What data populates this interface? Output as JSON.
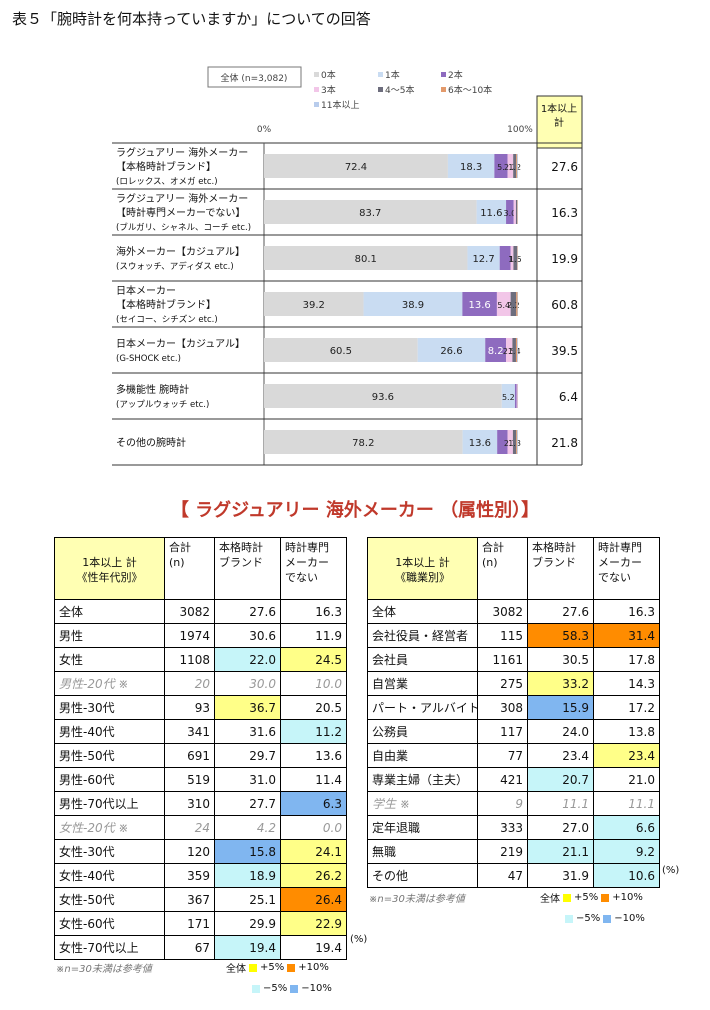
{
  "page_title": "表５「腕時計を何本持っていますか」についての回答",
  "chart_data": {
    "type": "bar",
    "stacked": true,
    "orientation": "horizontal",
    "sample_label": "全体 (n=3,082)",
    "axis_left": "0%",
    "axis_right": "100%",
    "xlim": [
      0,
      100
    ],
    "total_header": "1本以上\n計",
    "series": [
      {
        "name": "0本",
        "color": "#d9d9d9"
      },
      {
        "name": "1本",
        "color": "#c9dcf2"
      },
      {
        "name": "2本",
        "color": "#8e6bbf"
      },
      {
        "name": "3本",
        "color": "#f2c6e8"
      },
      {
        "name": "4～5本",
        "color": "#6d6d7d"
      },
      {
        "name": "6本～10本",
        "color": "#e39a6b"
      },
      {
        "name": "11本以上",
        "color": "#b8ccec"
      }
    ],
    "categories": [
      {
        "lines": [
          "ラグジュアリー 海外メーカー",
          "【本格時計ブランド】",
          "(ロレックス、オメガ etc.)"
        ],
        "values": [
          72.4,
          18.3,
          5.2,
          2.2,
          1.2,
          0.4,
          0.3
        ],
        "labels": [
          "72.4",
          "18.3",
          "5.",
          "2.2",
          "1.2",
          "",
          ""
        ],
        "total": "27.6"
      },
      {
        "lines": [
          "ラグジュアリー 海外メーカー",
          "【時計専門メーカーでない】",
          "(ブルガリ、シャネル、コーチ etc.)"
        ],
        "values": [
          83.7,
          11.6,
          3.0,
          0.9,
          0.5,
          0.2,
          0.1
        ],
        "labels": [
          "83.7",
          "11.6",
          "3.0",
          "",
          "",
          "",
          ""
        ],
        "total": "16.3"
      },
      {
        "lines": [
          "海外メーカー【カジュアル】",
          "(スウォッチ、アディダス etc.)"
        ],
        "values": [
          80.1,
          12.7,
          4.3,
          1.1,
          1.5,
          0.2,
          0.1
        ],
        "labels": [
          "80.1",
          "12.7",
          "",
          "1.",
          "1.5",
          "",
          ""
        ],
        "total": "19.9"
      },
      {
        "lines": [
          "日本メーカー",
          "【本格時計ブランド】",
          "(セイコー、シチズン etc.)"
        ],
        "values": [
          39.2,
          38.9,
          13.6,
          5.4,
          2.2,
          0.5,
          0.2
        ],
        "labels": [
          "39.2",
          "38.9",
          "13.6",
          "5.4",
          "2.2",
          "",
          ""
        ],
        "total": "60.8"
      },
      {
        "lines": [
          "日本メーカー【カジュアル】",
          "(G-SHOCK etc.)"
        ],
        "values": [
          60.5,
          26.6,
          8.2,
          2.5,
          1.4,
          0.5,
          0.3
        ],
        "labels": [
          "60.5",
          "26.6",
          "8.2",
          "2.5",
          "1.4",
          "",
          ""
        ],
        "total": "39.5"
      },
      {
        "lines": [
          "多機能性 腕時計",
          "(アップルウォッチ etc.)"
        ],
        "values": [
          93.6,
          5.2,
          0.7,
          0.3,
          0.1,
          0.05,
          0.05
        ],
        "labels": [
          "93.6",
          "5.2",
          "",
          "",
          "",
          "",
          ""
        ],
        "total": "6.4"
      },
      {
        "lines": [
          "その他の腕時計"
        ],
        "values": [
          78.2,
          13.6,
          4.1,
          2.1,
          1.3,
          0.4,
          0.3
        ],
        "labels": [
          "78.2",
          "13.6",
          "",
          "2.1",
          "1.3",
          "",
          ""
        ],
        "total": "21.8"
      }
    ]
  },
  "section_heading": "【 ラグジュアリー 海外メーカー （属性別）】",
  "table_left": {
    "header_main": "1本以上 計\n《性年代別》",
    "header_total": "合計\n(n)",
    "header_a": "本格時計\nブランド",
    "header_b": "時計専門\nメーカー\nでない",
    "rows": [
      {
        "label": "全体",
        "n": "3082",
        "a": "27.6",
        "b": "16.3",
        "style": "",
        "ca": "",
        "cb": ""
      },
      {
        "label": "男性",
        "n": "1974",
        "a": "30.6",
        "b": "11.9",
        "style": "thick",
        "ca": "",
        "cb": ""
      },
      {
        "label": "女性",
        "n": "1108",
        "a": "22.0",
        "b": "24.5",
        "style": "",
        "ca": "c-lightblue",
        "cb": "c-yellow"
      },
      {
        "label": "男性-20代 ※",
        "n": "20",
        "a": "30.0",
        "b": "10.0",
        "style": "thick ref",
        "ca": "",
        "cb": ""
      },
      {
        "label": "男性-30代",
        "n": "93",
        "a": "36.7",
        "b": "20.5",
        "style": "",
        "ca": "c-yellow",
        "cb": ""
      },
      {
        "label": "男性-40代",
        "n": "341",
        "a": "31.6",
        "b": "11.2",
        "style": "",
        "ca": "",
        "cb": "c-lightblue"
      },
      {
        "label": "男性-50代",
        "n": "691",
        "a": "29.7",
        "b": "13.6",
        "style": "",
        "ca": "",
        "cb": ""
      },
      {
        "label": "男性-60代",
        "n": "519",
        "a": "31.0",
        "b": "11.4",
        "style": "",
        "ca": "",
        "cb": ""
      },
      {
        "label": "男性-70代以上",
        "n": "310",
        "a": "27.7",
        "b": "6.3",
        "style": "",
        "ca": "",
        "cb": "c-blue"
      },
      {
        "label": "女性-20代 ※",
        "n": "24",
        "a": "4.2",
        "b": "0.0",
        "style": "dashed ref",
        "ca": "",
        "cb": ""
      },
      {
        "label": "女性-30代",
        "n": "120",
        "a": "15.8",
        "b": "24.1",
        "style": "",
        "ca": "c-blue",
        "cb": "c-yellow"
      },
      {
        "label": "女性-40代",
        "n": "359",
        "a": "18.9",
        "b": "26.2",
        "style": "",
        "ca": "c-lightblue",
        "cb": "c-yellow"
      },
      {
        "label": "女性-50代",
        "n": "367",
        "a": "25.1",
        "b": "26.4",
        "style": "",
        "ca": "",
        "cb": "c-orange"
      },
      {
        "label": "女性-60代",
        "n": "171",
        "a": "29.9",
        "b": "22.9",
        "style": "",
        "ca": "",
        "cb": "c-yellow"
      },
      {
        "label": "女性-70代以上",
        "n": "67",
        "a": "19.4",
        "b": "19.4",
        "style": "",
        "ca": "c-lightblue",
        "cb": ""
      }
    ],
    "unit": "(%)",
    "note": "※n=30未満は参考値"
  },
  "table_right": {
    "header_main": "1本以上 計\n《職業別》",
    "header_total": "合計\n(n)",
    "header_a": "本格時計\nブランド",
    "header_b": "時計専門\nメーカー\nでない",
    "rows": [
      {
        "label": "全体",
        "n": "3082",
        "a": "27.6",
        "b": "16.3",
        "style": "",
        "ca": "",
        "cb": ""
      },
      {
        "label": "会社役員・経営者",
        "n": "115",
        "a": "58.3",
        "b": "31.4",
        "style": "thick",
        "ca": "c-orange",
        "cb": "c-orange"
      },
      {
        "label": "会社員",
        "n": "1161",
        "a": "30.5",
        "b": "17.8",
        "style": "",
        "ca": "",
        "cb": ""
      },
      {
        "label": "自営業",
        "n": "275",
        "a": "33.2",
        "b": "14.3",
        "style": "",
        "ca": "c-yellow",
        "cb": ""
      },
      {
        "label": "パート・アルバイト",
        "n": "308",
        "a": "15.9",
        "b": "17.2",
        "style": "",
        "ca": "c-blue",
        "cb": ""
      },
      {
        "label": "公務員",
        "n": "117",
        "a": "24.0",
        "b": "13.8",
        "style": "",
        "ca": "",
        "cb": ""
      },
      {
        "label": "自由業",
        "n": "77",
        "a": "23.4",
        "b": "23.4",
        "style": "",
        "ca": "",
        "cb": "c-yellow"
      },
      {
        "label": "専業主婦（主夫）",
        "n": "421",
        "a": "20.7",
        "b": "21.0",
        "style": "",
        "ca": "c-lightblue",
        "cb": ""
      },
      {
        "label": "学生 ※",
        "n": "9",
        "a": "11.1",
        "b": "11.1",
        "style": "ref",
        "ca": "",
        "cb": ""
      },
      {
        "label": "定年退職",
        "n": "333",
        "a": "27.0",
        "b": "6.6",
        "style": "",
        "ca": "",
        "cb": "c-lightblue"
      },
      {
        "label": "無職",
        "n": "219",
        "a": "21.1",
        "b": "9.2",
        "style": "",
        "ca": "c-lightblue",
        "cb": "c-lightblue"
      },
      {
        "label": "その他",
        "n": "47",
        "a": "31.9",
        "b": "10.6",
        "style": "",
        "ca": "",
        "cb": "c-lightblue"
      }
    ],
    "unit": "(%)",
    "note": "※n=30未満は参考値"
  },
  "key": {
    "prefix": "全体",
    "plus5": "+5%",
    "plus10": "+10%",
    "minus5": "−5%",
    "minus10": "−10%",
    "colors": {
      "plus5": "#ffff00",
      "plus10": "#ff8c00",
      "minus5": "#c6f5f9",
      "minus10": "#80b6f0"
    }
  }
}
